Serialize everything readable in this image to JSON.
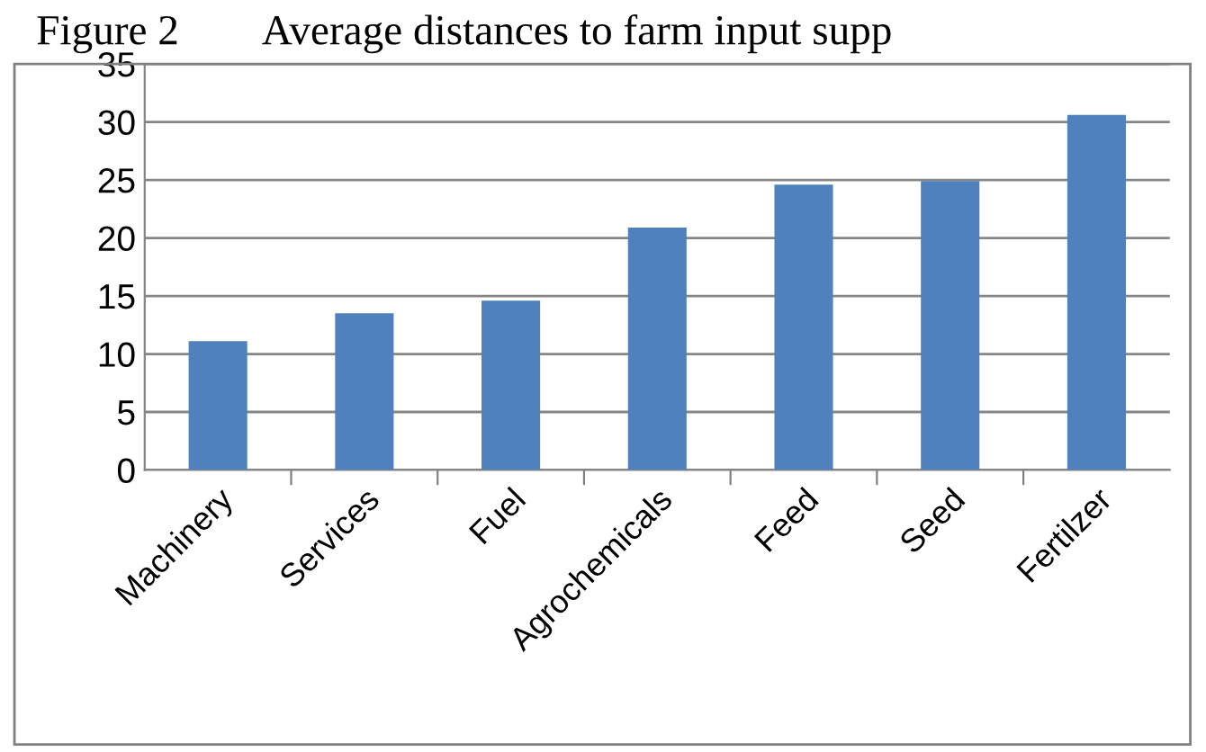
{
  "chart_data": {
    "type": "bar",
    "title": "Figure 2        Average distances to farm input supp",
    "categories": [
      "Machinery",
      "Services",
      "Fuel",
      "Agrochemicals",
      "Feed",
      "Seed",
      "Fertilzer"
    ],
    "values": [
      11.1,
      13.5,
      14.6,
      20.9,
      24.6,
      24.9,
      30.6
    ],
    "color": "#4f81bd",
    "ylim": [
      0,
      35
    ],
    "yticks": [
      0,
      5,
      10,
      15,
      20,
      25,
      30,
      35
    ],
    "grid": "y"
  }
}
